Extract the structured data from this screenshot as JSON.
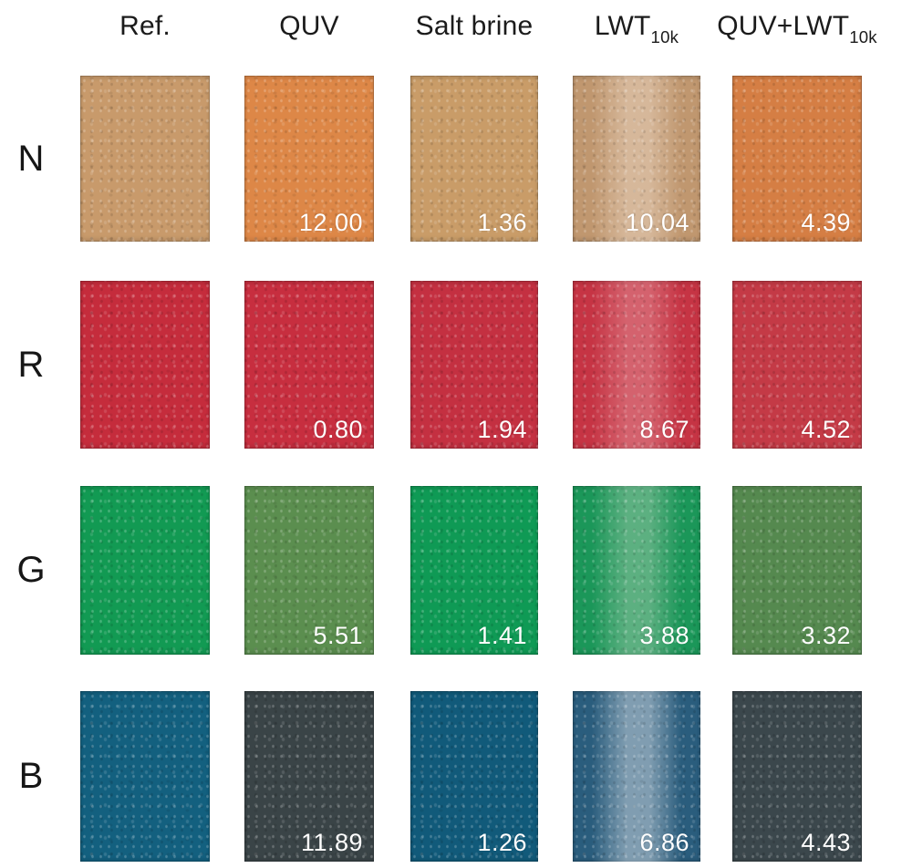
{
  "figure": {
    "columns": [
      {
        "label": "Ref.",
        "sub": ""
      },
      {
        "label": "QUV",
        "sub": ""
      },
      {
        "label": "Salt brine",
        "sub": ""
      },
      {
        "label": "LWT",
        "sub": "10k"
      },
      {
        "label": "QUV+LWT",
        "sub": "10k"
      }
    ],
    "rows": [
      {
        "label": "N",
        "swatches": [
          {
            "color": "#c89a6b",
            "streak_color": "",
            "streak_alpha": 0,
            "value": ""
          },
          {
            "color": "#dd8747",
            "streak_color": "",
            "streak_alpha": 0,
            "value": "12.00"
          },
          {
            "color": "#c99c68",
            "streak_color": "",
            "streak_alpha": 0,
            "value": "1.36"
          },
          {
            "color": "#c0976f",
            "streak_color": "#e8d2bd",
            "streak_alpha": 0.55,
            "value": "10.04"
          },
          {
            "color": "#d57e44",
            "streak_color": "",
            "streak_alpha": 0,
            "value": "4.39"
          }
        ]
      },
      {
        "label": "R",
        "swatches": [
          {
            "color": "#c52c3c",
            "streak_color": "",
            "streak_alpha": 0,
            "value": ""
          },
          {
            "color": "#c72e3f",
            "streak_color": "",
            "streak_alpha": 0,
            "value": "0.80"
          },
          {
            "color": "#c43041",
            "streak_color": "",
            "streak_alpha": 0,
            "value": "1.94"
          },
          {
            "color": "#c63444",
            "streak_color": "#e69aa0",
            "streak_alpha": 0.45,
            "value": "8.67"
          },
          {
            "color": "#c43a46",
            "streak_color": "",
            "streak_alpha": 0,
            "value": "4.52"
          }
        ]
      },
      {
        "label": "G",
        "swatches": [
          {
            "color": "#129a53",
            "streak_color": "",
            "streak_alpha": 0,
            "value": ""
          },
          {
            "color": "#5b8e4f",
            "streak_color": "",
            "streak_alpha": 0,
            "value": "5.51"
          },
          {
            "color": "#0f9a55",
            "streak_color": "",
            "streak_alpha": 0,
            "value": "1.41"
          },
          {
            "color": "#1b9759",
            "streak_color": "#9cc8a8",
            "streak_alpha": 0.5,
            "value": "3.88"
          },
          {
            "color": "#55894f",
            "streak_color": "",
            "streak_alpha": 0,
            "value": "3.32"
          }
        ]
      },
      {
        "label": "B",
        "swatches": [
          {
            "color": "#13607f",
            "streak_color": "",
            "streak_alpha": 0,
            "value": ""
          },
          {
            "color": "#3a4447",
            "streak_color": "",
            "streak_alpha": 0,
            "value": "11.89"
          },
          {
            "color": "#115a7a",
            "streak_color": "",
            "streak_alpha": 0,
            "value": "1.26"
          },
          {
            "color": "#2a5d7d",
            "streak_color": "#c6d2dc",
            "streak_alpha": 0.55,
            "value": "6.86"
          },
          {
            "color": "#3b474c",
            "streak_color": "",
            "streak_alpha": 0,
            "value": "4.43"
          }
        ]
      }
    ]
  },
  "chart_data": {
    "type": "table",
    "row_labels": [
      "N",
      "R",
      "G",
      "B"
    ],
    "column_labels": [
      "Ref.",
      "QUV",
      "Salt brine",
      "LWT10k",
      "QUV+LWT10k"
    ],
    "values": [
      [
        null,
        12.0,
        1.36,
        10.04,
        4.39
      ],
      [
        null,
        0.8,
        1.94,
        8.67,
        4.52
      ],
      [
        null,
        5.51,
        1.41,
        3.88,
        3.32
      ],
      [
        null,
        11.89,
        1.26,
        6.86,
        4.43
      ]
    ]
  }
}
